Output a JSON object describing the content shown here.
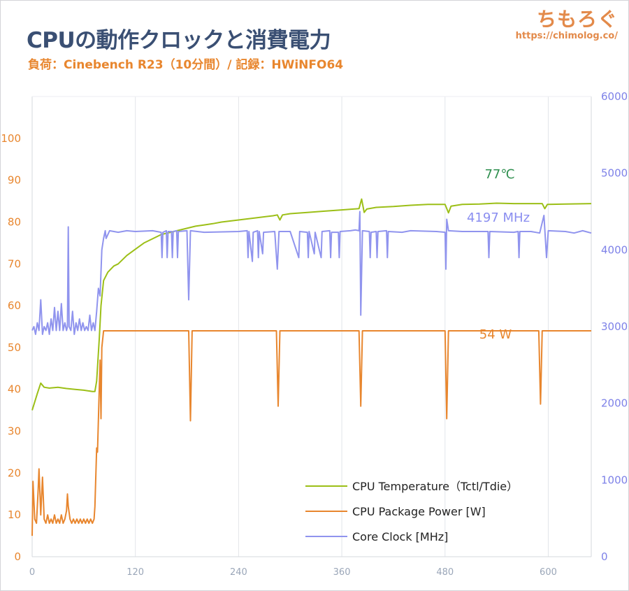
{
  "title": "CPUの動作クロックと消費電力",
  "subtitle": "負荷：Cinebench R23（10分間）/ 記録：HWiNFO64",
  "brand": {
    "name": "ちもろぐ",
    "url": "https://chimolog.co/"
  },
  "chart_data": {
    "type": "line",
    "x_ticks": [
      0,
      120,
      240,
      360,
      480,
      600
    ],
    "xlim": [
      0,
      650
    ],
    "y_left_ticks": [
      0,
      10,
      20,
      30,
      40,
      50,
      60,
      70,
      80,
      90,
      100
    ],
    "y_left_lim": [
      0,
      110
    ],
    "y_right_ticks": [
      0,
      1000,
      2000,
      3000,
      4000,
      5000,
      6000
    ],
    "y_right_lim": [
      0,
      6000
    ],
    "grid": "vertical",
    "legend_position": "bottom-right",
    "annotations": [
      {
        "text": "77℃",
        "color": "#2f8f4f",
        "series": "temp"
      },
      {
        "text": "4197 MHz",
        "color": "#8a8ef0",
        "series": "clock"
      },
      {
        "text": "54 W",
        "color": "#e8862e",
        "series": "power"
      }
    ],
    "series": [
      {
        "name": "CPU Temperature（Tctl/Tdie）",
        "key": "temp",
        "axis": "left",
        "color": "#9cbf17",
        "points": [
          [
            0,
            35
          ],
          [
            3,
            37
          ],
          [
            6,
            39
          ],
          [
            10,
            41.5
          ],
          [
            14,
            40.5
          ],
          [
            20,
            40.3
          ],
          [
            30,
            40.5
          ],
          [
            40,
            40.2
          ],
          [
            50,
            40
          ],
          [
            60,
            39.8
          ],
          [
            70,
            39.5
          ],
          [
            73,
            39.5
          ],
          [
            75,
            42
          ],
          [
            78,
            52
          ],
          [
            80,
            60
          ],
          [
            83,
            66
          ],
          [
            88,
            68
          ],
          [
            95,
            69.5
          ],
          [
            100,
            70
          ],
          [
            110,
            72
          ],
          [
            120,
            73.5
          ],
          [
            130,
            75
          ],
          [
            140,
            76
          ],
          [
            150,
            77
          ],
          [
            160,
            77.5
          ],
          [
            170,
            78
          ],
          [
            180,
            78.5
          ],
          [
            190,
            79
          ],
          [
            200,
            79.3
          ],
          [
            210,
            79.6
          ],
          [
            220,
            80
          ],
          [
            240,
            80.5
          ],
          [
            260,
            81
          ],
          [
            280,
            81.5
          ],
          [
            285,
            81.7
          ],
          [
            288,
            80.5
          ],
          [
            291,
            81.7
          ],
          [
            300,
            82
          ],
          [
            320,
            82.3
          ],
          [
            340,
            82.6
          ],
          [
            360,
            82.9
          ],
          [
            380,
            83.2
          ],
          [
            383,
            85.5
          ],
          [
            386,
            82.3
          ],
          [
            389,
            83.1
          ],
          [
            400,
            83.5
          ],
          [
            420,
            83.7
          ],
          [
            440,
            84
          ],
          [
            460,
            84.2
          ],
          [
            480,
            84.2
          ],
          [
            484,
            82.2
          ],
          [
            487,
            83.8
          ],
          [
            500,
            84.2
          ],
          [
            520,
            84.3
          ],
          [
            540,
            84.5
          ],
          [
            560,
            84.4
          ],
          [
            580,
            84.4
          ],
          [
            593,
            84.4
          ],
          [
            596,
            83.2
          ],
          [
            599,
            84.2
          ],
          [
            620,
            84.3
          ],
          [
            650,
            84.4
          ]
        ]
      },
      {
        "name": "CPU Package Power [W]",
        "key": "power",
        "axis": "left",
        "color": "#e8862e",
        "points": [
          [
            0,
            5
          ],
          [
            1,
            18
          ],
          [
            3,
            9
          ],
          [
            5,
            8
          ],
          [
            7,
            16
          ],
          [
            8,
            21
          ],
          [
            10,
            10
          ],
          [
            12,
            19
          ],
          [
            14,
            9
          ],
          [
            16,
            8
          ],
          [
            18,
            10
          ],
          [
            20,
            8
          ],
          [
            22,
            9
          ],
          [
            24,
            8
          ],
          [
            26,
            10
          ],
          [
            28,
            8
          ],
          [
            30,
            9
          ],
          [
            32,
            8
          ],
          [
            34,
            10
          ],
          [
            36,
            8
          ],
          [
            38,
            9
          ],
          [
            40,
            11
          ],
          [
            41,
            15
          ],
          [
            42,
            12
          ],
          [
            44,
            9
          ],
          [
            46,
            8
          ],
          [
            48,
            9
          ],
          [
            50,
            8
          ],
          [
            52,
            9
          ],
          [
            54,
            8
          ],
          [
            56,
            9
          ],
          [
            58,
            8
          ],
          [
            60,
            9
          ],
          [
            62,
            8
          ],
          [
            64,
            9
          ],
          [
            66,
            8
          ],
          [
            68,
            9
          ],
          [
            70,
            8
          ],
          [
            72,
            9
          ],
          [
            73,
            12
          ],
          [
            75,
            26
          ],
          [
            76,
            25
          ],
          [
            78,
            40
          ],
          [
            79,
            47
          ],
          [
            80,
            33
          ],
          [
            81,
            50
          ],
          [
            83,
            54
          ],
          [
            85,
            54
          ],
          [
            100,
            54
          ],
          [
            140,
            54
          ],
          [
            180,
            54
          ],
          [
            182,
            54
          ],
          [
            184,
            32.5
          ],
          [
            186,
            54
          ],
          [
            200,
            54
          ],
          [
            250,
            54
          ],
          [
            284,
            54
          ],
          [
            286,
            36
          ],
          [
            288,
            54
          ],
          [
            320,
            54
          ],
          [
            380,
            54
          ],
          [
            382,
            36
          ],
          [
            384,
            54
          ],
          [
            420,
            54
          ],
          [
            480,
            54
          ],
          [
            482,
            33
          ],
          [
            484,
            54
          ],
          [
            540,
            54
          ],
          [
            589,
            54
          ],
          [
            591,
            36.5
          ],
          [
            593,
            54
          ],
          [
            620,
            54
          ],
          [
            650,
            54
          ]
        ]
      },
      {
        "name": "Core Clock [MHz]",
        "key": "clock",
        "axis": "right",
        "color": "#9094ee",
        "points": [
          [
            0,
            2950
          ],
          [
            2,
            3000
          ],
          [
            4,
            2900
          ],
          [
            6,
            3050
          ],
          [
            8,
            2950
          ],
          [
            10,
            3350
          ],
          [
            12,
            2900
          ],
          [
            14,
            3000
          ],
          [
            16,
            2950
          ],
          [
            18,
            3050
          ],
          [
            20,
            2900
          ],
          [
            22,
            3100
          ],
          [
            24,
            2950
          ],
          [
            26,
            3250
          ],
          [
            28,
            2950
          ],
          [
            30,
            3200
          ],
          [
            32,
            2950
          ],
          [
            34,
            3300
          ],
          [
            36,
            2950
          ],
          [
            38,
            3050
          ],
          [
            40,
            2950
          ],
          [
            41,
            3000
          ],
          [
            42,
            4300
          ],
          [
            43,
            3000
          ],
          [
            45,
            2950
          ],
          [
            47,
            3200
          ],
          [
            49,
            2900
          ],
          [
            51,
            3050
          ],
          [
            53,
            2950
          ],
          [
            55,
            3100
          ],
          [
            57,
            2950
          ],
          [
            59,
            3050
          ],
          [
            61,
            2950
          ],
          [
            63,
            3000
          ],
          [
            65,
            2950
          ],
          [
            67,
            3150
          ],
          [
            69,
            2950
          ],
          [
            71,
            3050
          ],
          [
            73,
            2950
          ],
          [
            75,
            3200
          ],
          [
            77,
            3500
          ],
          [
            79,
            3400
          ],
          [
            81,
            4000
          ],
          [
            83,
            4150
          ],
          [
            85,
            4250
          ],
          [
            86,
            4150
          ],
          [
            90,
            4250
          ],
          [
            100,
            4230
          ],
          [
            110,
            4250
          ],
          [
            120,
            4240
          ],
          [
            140,
            4250
          ],
          [
            150,
            4230
          ],
          [
            151,
            3900
          ],
          [
            152,
            4230
          ],
          [
            156,
            4250
          ],
          [
            157,
            3900
          ],
          [
            158,
            4240
          ],
          [
            162,
            4240
          ],
          [
            163,
            3900
          ],
          [
            164,
            4240
          ],
          [
            168,
            4250
          ],
          [
            169,
            3900
          ],
          [
            170,
            4240
          ],
          [
            180,
            4250
          ],
          [
            182,
            3350
          ],
          [
            184,
            4250
          ],
          [
            200,
            4230
          ],
          [
            240,
            4240
          ],
          [
            250,
            4250
          ],
          [
            251,
            3900
          ],
          [
            252,
            4240
          ],
          [
            256,
            3850
          ],
          [
            257,
            4230
          ],
          [
            262,
            4250
          ],
          [
            263,
            3900
          ],
          [
            264,
            4240
          ],
          [
            268,
            3950
          ],
          [
            269,
            4230
          ],
          [
            282,
            4240
          ],
          [
            285,
            3750
          ],
          [
            287,
            4240
          ],
          [
            300,
            4240
          ],
          [
            310,
            3900
          ],
          [
            311,
            4240
          ],
          [
            320,
            4230
          ],
          [
            321,
            3900
          ],
          [
            322,
            4240
          ],
          [
            328,
            3950
          ],
          [
            329,
            4230
          ],
          [
            336,
            3900
          ],
          [
            337,
            4240
          ],
          [
            346,
            4250
          ],
          [
            347,
            3900
          ],
          [
            348,
            4230
          ],
          [
            356,
            4230
          ],
          [
            357,
            3900
          ],
          [
            358,
            4240
          ],
          [
            370,
            4250
          ],
          [
            376,
            4260
          ],
          [
            380,
            4250
          ],
          [
            381,
            4500
          ],
          [
            382,
            3150
          ],
          [
            384,
            4250
          ],
          [
            392,
            4240
          ],
          [
            393,
            3900
          ],
          [
            394,
            4230
          ],
          [
            400,
            4240
          ],
          [
            401,
            3900
          ],
          [
            402,
            4240
          ],
          [
            412,
            4250
          ],
          [
            413,
            3900
          ],
          [
            414,
            4240
          ],
          [
            430,
            4230
          ],
          [
            440,
            4250
          ],
          [
            470,
            4240
          ],
          [
            480,
            4230
          ],
          [
            481,
            3750
          ],
          [
            482,
            4400
          ],
          [
            484,
            4250
          ],
          [
            500,
            4240
          ],
          [
            530,
            4240
          ],
          [
            531,
            3900
          ],
          [
            532,
            4240
          ],
          [
            560,
            4230
          ],
          [
            565,
            4240
          ],
          [
            566,
            3900
          ],
          [
            567,
            4240
          ],
          [
            580,
            4240
          ],
          [
            590,
            4220
          ],
          [
            595,
            4450
          ],
          [
            598,
            3900
          ],
          [
            600,
            4250
          ],
          [
            620,
            4240
          ],
          [
            630,
            4220
          ],
          [
            640,
            4250
          ],
          [
            650,
            4220
          ]
        ]
      }
    ]
  },
  "legend": [
    {
      "label": "CPU Temperature（Tctl/Tdie）",
      "color": "#9cbf17"
    },
    {
      "label": "CPU Package Power [W]",
      "color": "#e8862e"
    },
    {
      "label": "Core Clock [MHz]",
      "color": "#9094ee"
    }
  ]
}
